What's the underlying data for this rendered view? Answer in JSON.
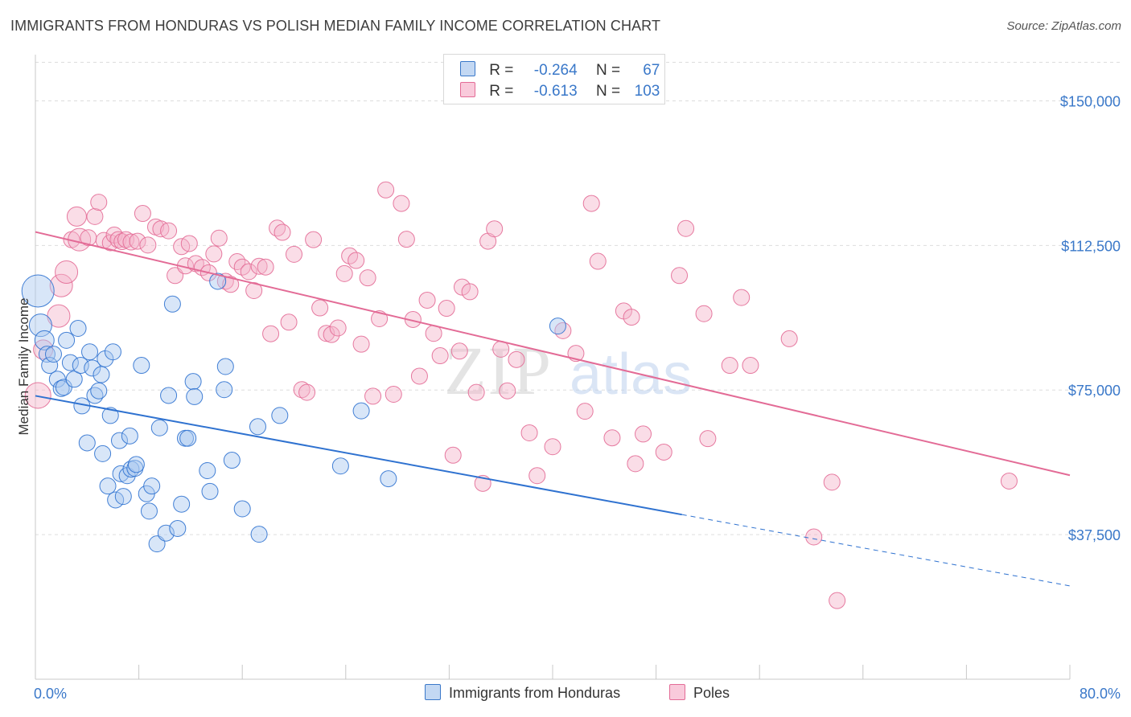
{
  "title": "IMMIGRANTS FROM HONDURAS VS POLISH MEDIAN FAMILY INCOME CORRELATION CHART",
  "source": "Source: ZipAtlas.com",
  "watermark": {
    "zip": "ZIP",
    "atlas": "atlas"
  },
  "colors": {
    "blue": "#3a78c9",
    "blue_fill": "#a8c8ef",
    "blue_line": "#2f72d0",
    "pink_fill": "#f5b3c9",
    "pink_line": "#e36b96",
    "grid": "#dddddd"
  },
  "legend": {
    "rows": [
      {
        "r_label": "R =",
        "r_value": "-0.264",
        "n_label": "N =",
        "n_value": "67"
      },
      {
        "r_label": "R =",
        "r_value": "-0.613",
        "n_label": "N =",
        "n_value": "103"
      }
    ]
  },
  "bottom_legend": {
    "series1": "Immigrants from Honduras",
    "series2": "Poles"
  },
  "chart_data": {
    "type": "scatter",
    "xlabel": "",
    "ylabel": "Median Family Income",
    "xlim": [
      0,
      80
    ],
    "ylim": [
      0,
      160000
    ],
    "x_tick_labels": {
      "min": "0.0%",
      "max": "80.0%"
    },
    "y_ticks": [
      {
        "value": 37500,
        "label": "$37,500"
      },
      {
        "value": 75000,
        "label": "$75,000"
      },
      {
        "value": 112500,
        "label": "$112,500"
      },
      {
        "value": 150000,
        "label": "$150,000"
      }
    ],
    "series": [
      {
        "name": "Immigrants from Honduras",
        "r": -0.264,
        "n": 67,
        "trend": {
          "x0": 0,
          "y0": 73500,
          "x1": 50,
          "y1": 42700,
          "dash_to_x": 80,
          "dash_to_y": 24200
        },
        "points": [
          [
            0.2,
            100700,
            20
          ],
          [
            0.4,
            91800,
            14
          ],
          [
            0.7,
            87900,
            12
          ],
          [
            0.9,
            84300,
            10
          ],
          [
            1.1,
            81400,
            10
          ],
          [
            1.4,
            84300,
            10
          ],
          [
            1.7,
            77800,
            10
          ],
          [
            2.0,
            75400,
            10
          ],
          [
            2.2,
            75700,
            10
          ],
          [
            2.4,
            87900,
            10
          ],
          [
            2.7,
            82100,
            10
          ],
          [
            3.0,
            77800,
            10
          ],
          [
            3.3,
            91000,
            10
          ],
          [
            3.5,
            81400,
            10
          ],
          [
            3.6,
            70900,
            10
          ],
          [
            4.0,
            61300,
            10
          ],
          [
            4.2,
            84900,
            10
          ],
          [
            4.4,
            80700,
            10
          ],
          [
            4.6,
            73600,
            10
          ],
          [
            4.9,
            74800,
            10
          ],
          [
            5.1,
            79000,
            10
          ],
          [
            5.2,
            58500,
            10
          ],
          [
            5.4,
            83100,
            10
          ],
          [
            5.6,
            50100,
            10
          ],
          [
            5.8,
            68400,
            10
          ],
          [
            6.0,
            84900,
            10
          ],
          [
            6.2,
            46500,
            10
          ],
          [
            6.5,
            61900,
            10
          ],
          [
            6.6,
            53300,
            10
          ],
          [
            6.8,
            47400,
            10
          ],
          [
            7.1,
            52800,
            10
          ],
          [
            7.3,
            63100,
            10
          ],
          [
            7.4,
            54500,
            10
          ],
          [
            7.7,
            54700,
            10
          ],
          [
            7.8,
            55700,
            10
          ],
          [
            8.2,
            81400,
            10
          ],
          [
            8.6,
            48100,
            10
          ],
          [
            8.8,
            43600,
            10
          ],
          [
            9.0,
            50100,
            10
          ],
          [
            9.4,
            35100,
            10
          ],
          [
            9.6,
            65200,
            10
          ],
          [
            10.1,
            37900,
            10
          ],
          [
            10.3,
            73600,
            10
          ],
          [
            10.6,
            97300,
            10
          ],
          [
            11.0,
            39100,
            10
          ],
          [
            11.3,
            45400,
            10
          ],
          [
            11.6,
            62500,
            10
          ],
          [
            11.8,
            62500,
            10
          ],
          [
            12.2,
            77200,
            10
          ],
          [
            12.3,
            73300,
            10
          ],
          [
            13.3,
            54100,
            10
          ],
          [
            13.5,
            48700,
            10
          ],
          [
            14.1,
            103200,
            10
          ],
          [
            14.6,
            75100,
            10
          ],
          [
            14.7,
            81100,
            10
          ],
          [
            15.2,
            56800,
            10
          ],
          [
            16.0,
            44200,
            10
          ],
          [
            17.2,
            65500,
            10
          ],
          [
            17.3,
            37600,
            10
          ],
          [
            18.9,
            68400,
            10
          ],
          [
            23.6,
            55300,
            10
          ],
          [
            25.2,
            69600,
            10
          ],
          [
            27.3,
            52000,
            10
          ],
          [
            40.4,
            91600,
            10
          ]
        ]
      },
      {
        "name": "Poles",
        "r": -0.613,
        "n": 103,
        "trend": {
          "x0": 0,
          "y0": 116000,
          "x1": 80,
          "y1": 52900
        },
        "points": [
          [
            0.2,
            73600,
            16
          ],
          [
            0.6,
            85500,
            12
          ],
          [
            1.8,
            94200,
            14
          ],
          [
            2.0,
            102100,
            14
          ],
          [
            2.4,
            105600,
            14
          ],
          [
            2.8,
            114000,
            10
          ],
          [
            3.2,
            120000,
            12
          ],
          [
            3.4,
            114000,
            14
          ],
          [
            4.1,
            114500,
            10
          ],
          [
            4.6,
            120000,
            10
          ],
          [
            4.9,
            123700,
            10
          ],
          [
            5.3,
            113800,
            10
          ],
          [
            5.8,
            113200,
            10
          ],
          [
            6.1,
            115200,
            10
          ],
          [
            6.4,
            114000,
            10
          ],
          [
            6.7,
            113500,
            10
          ],
          [
            7.0,
            114000,
            10
          ],
          [
            7.4,
            113400,
            10
          ],
          [
            7.9,
            113600,
            10
          ],
          [
            8.3,
            120800,
            10
          ],
          [
            8.7,
            112600,
            10
          ],
          [
            9.3,
            117300,
            10
          ],
          [
            9.7,
            116800,
            10
          ],
          [
            10.3,
            116300,
            10
          ],
          [
            10.8,
            104700,
            10
          ],
          [
            11.3,
            112200,
            10
          ],
          [
            11.6,
            107200,
            10
          ],
          [
            11.9,
            113000,
            10
          ],
          [
            12.4,
            107800,
            10
          ],
          [
            12.9,
            106800,
            10
          ],
          [
            13.4,
            105400,
            10
          ],
          [
            13.8,
            110300,
            10
          ],
          [
            14.2,
            114400,
            10
          ],
          [
            14.7,
            103200,
            10
          ],
          [
            15.1,
            102400,
            10
          ],
          [
            15.6,
            108300,
            10
          ],
          [
            16.0,
            106900,
            10
          ],
          [
            16.5,
            105700,
            10
          ],
          [
            16.9,
            100800,
            10
          ],
          [
            17.3,
            107100,
            10
          ],
          [
            17.8,
            106900,
            10
          ],
          [
            18.2,
            89600,
            10
          ],
          [
            18.7,
            117000,
            10
          ],
          [
            19.1,
            115900,
            10
          ],
          [
            19.6,
            92600,
            10
          ],
          [
            20.0,
            110200,
            10
          ],
          [
            20.6,
            75100,
            10
          ],
          [
            21.0,
            74400,
            10
          ],
          [
            21.5,
            114000,
            10
          ],
          [
            22.0,
            96300,
            10
          ],
          [
            22.5,
            89700,
            10
          ],
          [
            22.9,
            89400,
            10
          ],
          [
            23.4,
            91100,
            10
          ],
          [
            23.9,
            105200,
            10
          ],
          [
            24.3,
            109800,
            10
          ],
          [
            24.8,
            108600,
            10
          ],
          [
            25.2,
            86900,
            10
          ],
          [
            25.7,
            104100,
            10
          ],
          [
            26.1,
            73400,
            10
          ],
          [
            26.6,
            93500,
            10
          ],
          [
            27.1,
            126900,
            10
          ],
          [
            27.7,
            73900,
            10
          ],
          [
            28.3,
            123400,
            10
          ],
          [
            28.7,
            114100,
            10
          ],
          [
            29.2,
            93300,
            10
          ],
          [
            29.7,
            78600,
            10
          ],
          [
            30.3,
            98300,
            10
          ],
          [
            30.8,
            89700,
            10
          ],
          [
            31.3,
            83900,
            10
          ],
          [
            31.8,
            96200,
            10
          ],
          [
            32.3,
            58100,
            10
          ],
          [
            32.8,
            85100,
            10
          ],
          [
            33.0,
            101700,
            10
          ],
          [
            33.6,
            100500,
            10
          ],
          [
            34.1,
            74400,
            10
          ],
          [
            34.6,
            50800,
            10
          ],
          [
            35.0,
            113600,
            10
          ],
          [
            35.5,
            116800,
            10
          ],
          [
            36.0,
            85600,
            10
          ],
          [
            36.5,
            74800,
            10
          ],
          [
            37.2,
            82900,
            10
          ],
          [
            38.2,
            63900,
            10
          ],
          [
            38.8,
            52800,
            10
          ],
          [
            40.0,
            60300,
            10
          ],
          [
            40.8,
            90400,
            10
          ],
          [
            41.8,
            84500,
            10
          ],
          [
            42.5,
            69500,
            10
          ],
          [
            43.0,
            123400,
            10
          ],
          [
            43.5,
            108400,
            10
          ],
          [
            44.6,
            62600,
            10
          ],
          [
            45.5,
            95500,
            10
          ],
          [
            46.1,
            93900,
            10
          ],
          [
            46.4,
            55900,
            10
          ],
          [
            47.0,
            63600,
            10
          ],
          [
            48.6,
            58900,
            10
          ],
          [
            49.8,
            104700,
            10
          ],
          [
            50.3,
            116900,
            10
          ],
          [
            51.7,
            94800,
            10
          ],
          [
            52.0,
            62400,
            10
          ],
          [
            53.7,
            81400,
            10
          ],
          [
            54.6,
            99000,
            10
          ],
          [
            55.3,
            81400,
            10
          ],
          [
            58.3,
            88300,
            10
          ],
          [
            60.2,
            36900,
            10
          ],
          [
            61.6,
            51100,
            10
          ],
          [
            62.0,
            20400,
            10
          ],
          [
            75.3,
            51400,
            10
          ]
        ]
      }
    ]
  }
}
